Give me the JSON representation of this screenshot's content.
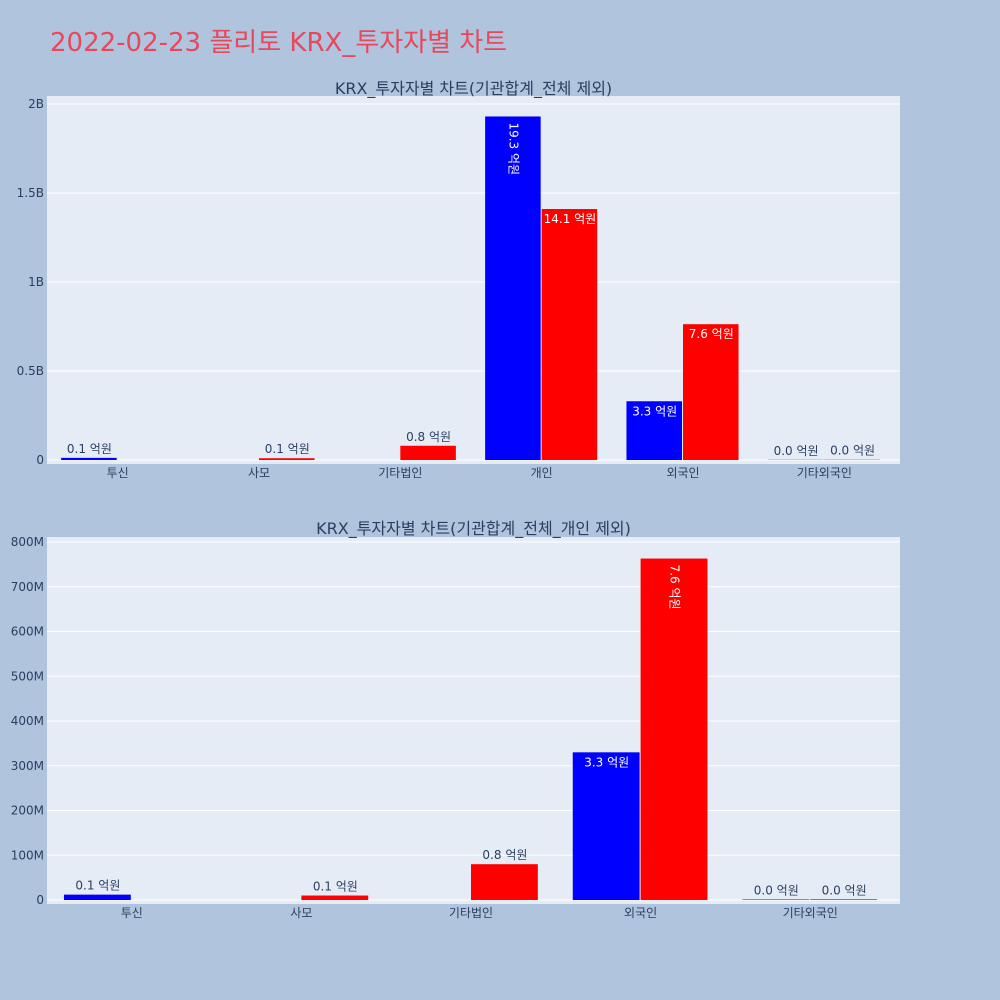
{
  "title": "2022-02-23 플리토 KRX_투자자별 차트",
  "colors": {
    "buy": "#0000ff",
    "sell": "#ff0000",
    "plot_bg": "#e5ecf6",
    "paper_bg": "#b0c4de",
    "title": "#e8485c"
  },
  "chart_data": [
    {
      "type": "bar",
      "title": "KRX_투자자별 차트(기관합계_전체 제외)",
      "categories": [
        "투신",
        "사모",
        "기타법인",
        "개인",
        "외국인",
        "기타외국인"
      ],
      "ylim": [
        0,
        2000000000
      ],
      "yticks": [
        0,
        500000000,
        1000000000,
        1500000000,
        2000000000
      ],
      "ytick_labels": [
        "0",
        "0.5B",
        "1B",
        "1.5B",
        "2B"
      ],
      "series": [
        {
          "color": "blue",
          "values": [
            12000000,
            0,
            0,
            1930000000,
            330000000,
            1000000
          ],
          "labels": [
            "0.1 억원",
            "",
            "",
            "19.3 억원",
            "3.3 억원",
            "0.0 억원"
          ]
        },
        {
          "color": "red",
          "values": [
            0,
            10000000,
            80000000,
            1410000000,
            763000000,
            1500000
          ],
          "labels": [
            "",
            "0.1 억원",
            "0.8 억원",
            "14.1 억원",
            "7.6 억원",
            "0.0 억원"
          ]
        }
      ]
    },
    {
      "type": "bar",
      "title": "KRX_투자자별 차트(기관합계_전체_개인 제외)",
      "categories": [
        "투신",
        "사모",
        "기타법인",
        "외국인",
        "기타외국인"
      ],
      "ylim": [
        0,
        800000000
      ],
      "yticks": [
        0,
        100000000,
        200000000,
        300000000,
        400000000,
        500000000,
        600000000,
        700000000,
        800000000
      ],
      "ytick_labels": [
        "0",
        "100M",
        "200M",
        "300M",
        "400M",
        "500M",
        "600M",
        "700M",
        "800M"
      ],
      "series": [
        {
          "color": "blue",
          "values": [
            12000000,
            0,
            0,
            330000000,
            1000000
          ],
          "labels": [
            "0.1 억원",
            "",
            "",
            "3.3 억원",
            "0.0 억원"
          ]
        },
        {
          "color": "red",
          "values": [
            0,
            10000000,
            80000000,
            763000000,
            1500000
          ],
          "labels": [
            "",
            "0.1 억원",
            "0.8 억원",
            "7.6 억원",
            "0.0 억원"
          ]
        }
      ]
    }
  ]
}
